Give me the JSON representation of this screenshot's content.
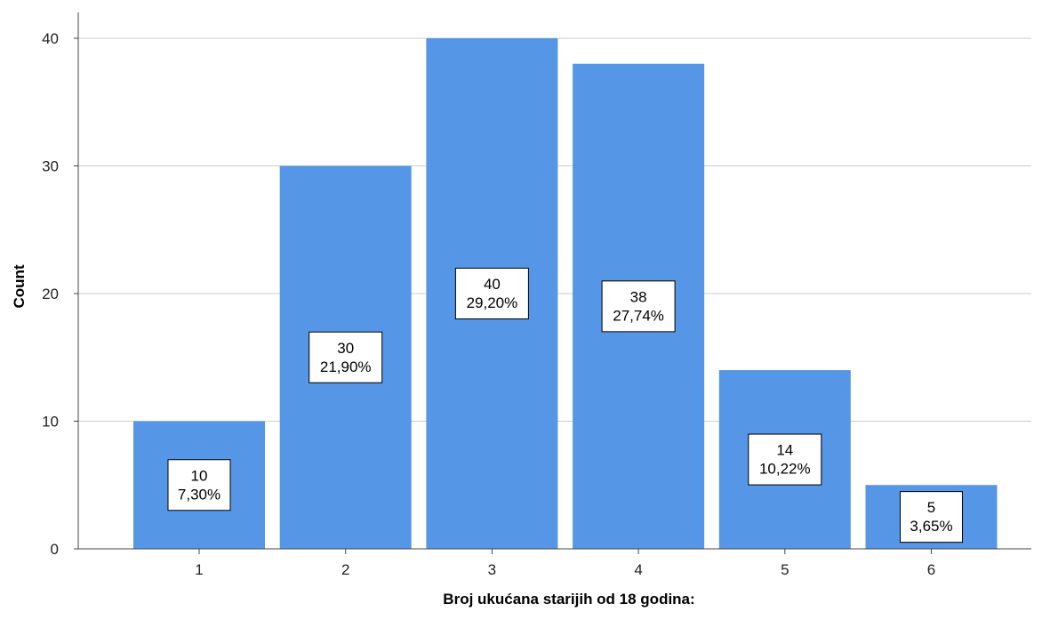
{
  "chart_data": {
    "type": "bar",
    "categories": [
      "1",
      "2",
      "3",
      "4",
      "5",
      "6"
    ],
    "values": [
      10,
      30,
      40,
      38,
      14,
      5
    ],
    "percent_labels": [
      "7,30%",
      "21,90%",
      "29,20%",
      "27,74%",
      "10,22%",
      "3,65%"
    ],
    "xlabel": "Broj ukućana starijih od 18 godina:",
    "ylabel": "Count",
    "ylim": [
      0,
      40
    ],
    "yticks": [
      "0",
      "10",
      "20",
      "30",
      "40"
    ],
    "grid": true,
    "bar_color": "#5596e6",
    "grid_color": "#cccccc",
    "axis_color": "#444444"
  }
}
